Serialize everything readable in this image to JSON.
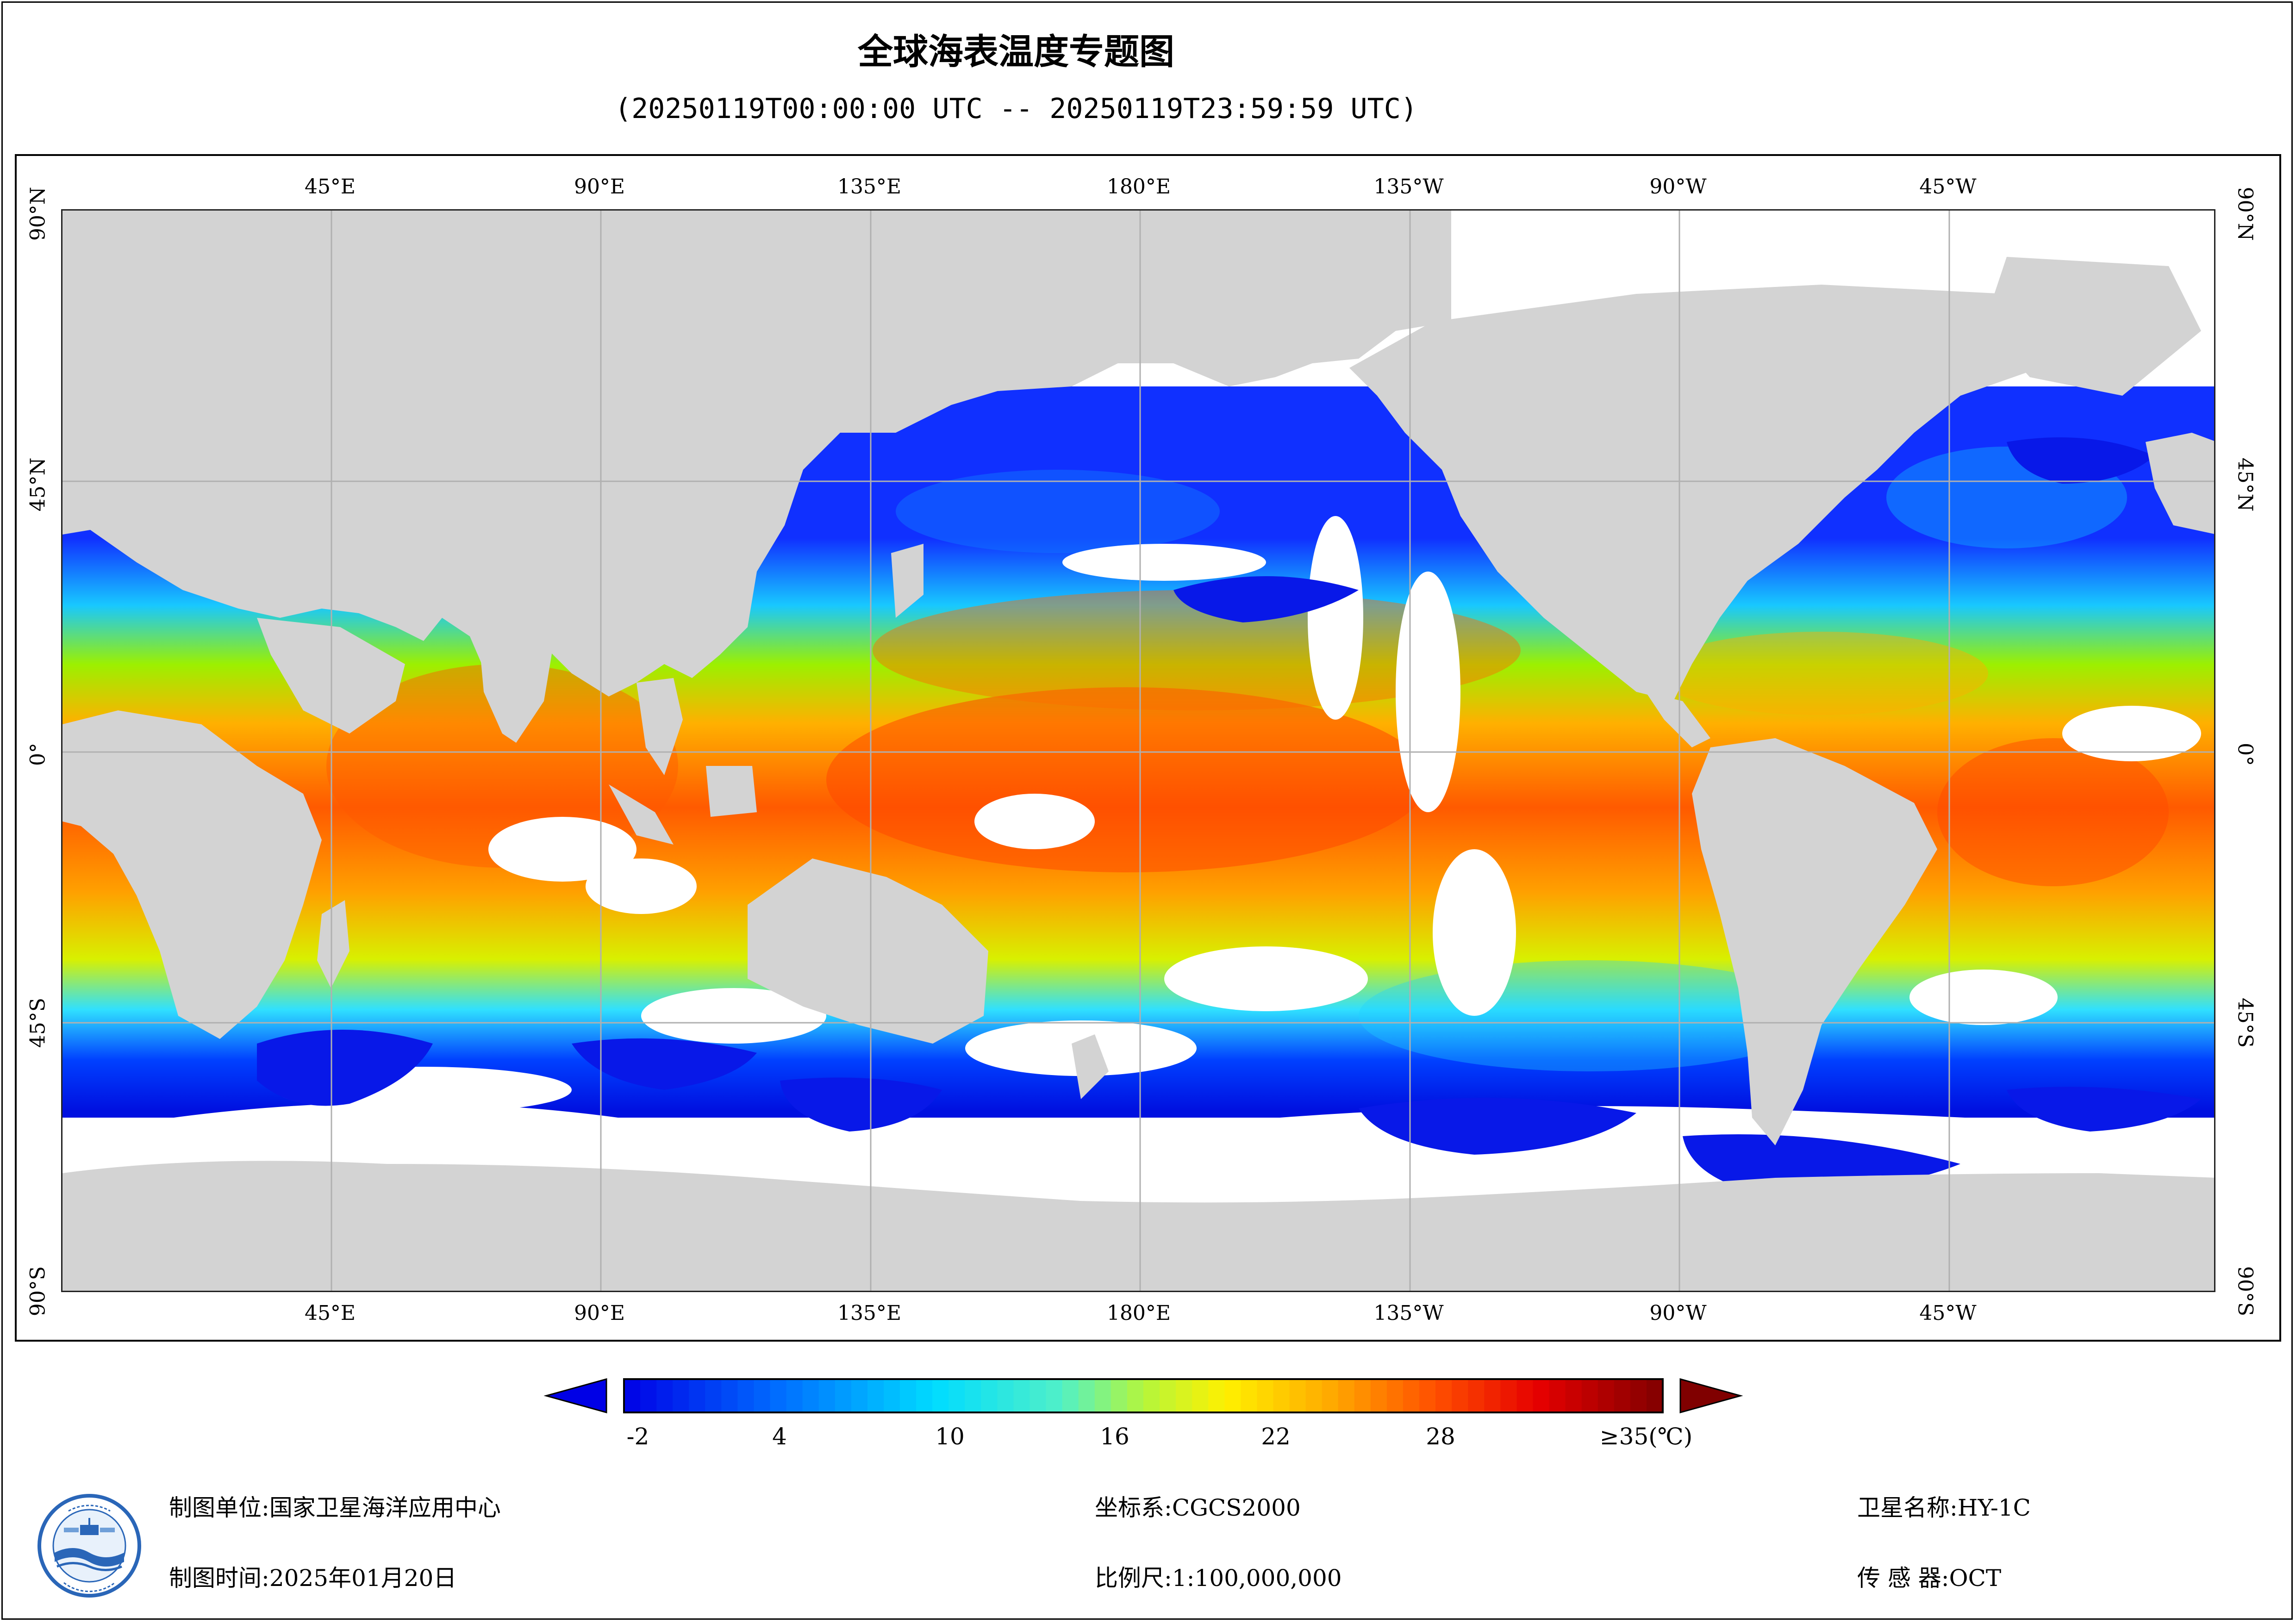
{
  "title": "全球海表温度专题图",
  "subtitle": "(20250119T00:00:00 UTC -- 20250119T23:59:59 UTC)",
  "map": {
    "lon_labels_top": [
      "45°E",
      "90°E",
      "135°E",
      "180°E",
      "135°W",
      "90°W",
      "45°W"
    ],
    "lon_labels_bottom": [
      "45°E",
      "90°E",
      "135°E",
      "180°E",
      "135°W",
      "90°W",
      "45°W"
    ],
    "lat_labels_left": [
      "90°N",
      "45°N",
      "0°",
      "45°S",
      "90°S"
    ],
    "lat_labels_right": [
      "90°N",
      "45°N",
      "0°",
      "45°S",
      "90°S"
    ],
    "colors": {
      "land": "#d3d3d3",
      "cloud_gap": "#ffffff",
      "grid": "#b0b0b0"
    }
  },
  "colorbar": {
    "min": -2,
    "max": 35,
    "ticks": [
      "-2",
      "4",
      "10",
      "16",
      "22",
      "28",
      "≥35(℃)"
    ],
    "tick_values": [
      -2,
      4,
      10,
      16,
      22,
      28,
      35
    ],
    "extend_low_color": "#0000e6",
    "extend_high_color": "#800000"
  },
  "footer": {
    "unit": "制图单位:国家卫星海洋应用中心",
    "time": "制图时间:2025年01月20日",
    "crs": "坐标系:CGCS2000",
    "scale": "比例尺:1:100,000,000",
    "satellite": "卫星名称:HY-1C",
    "sensor": "传 感 器:OCT"
  }
}
